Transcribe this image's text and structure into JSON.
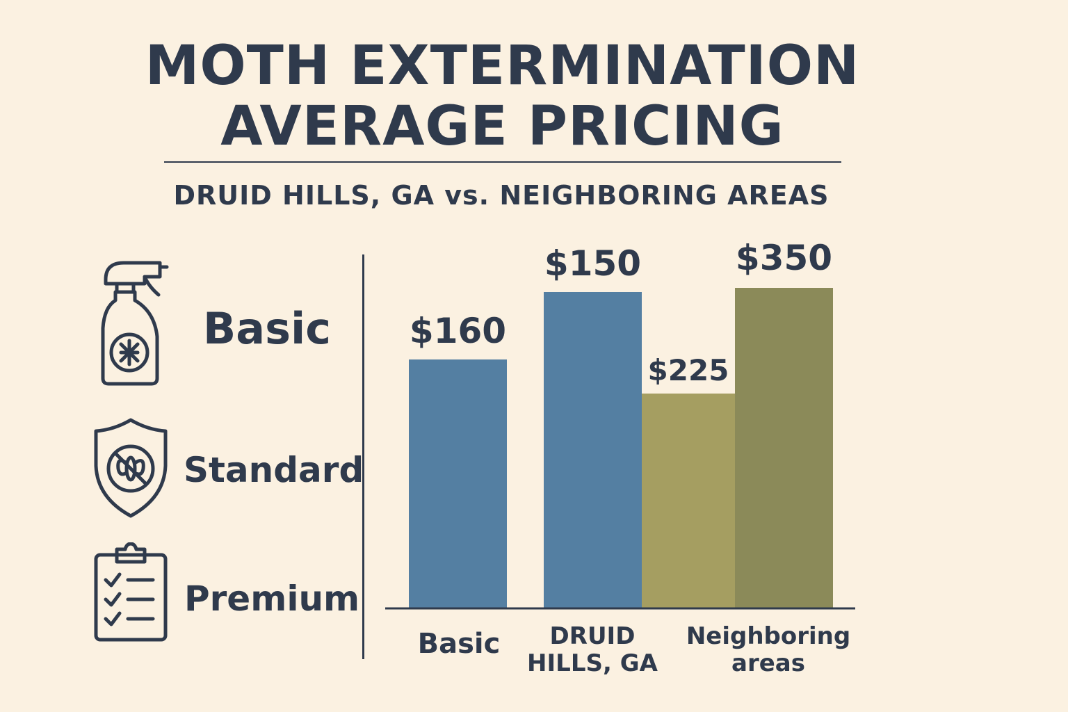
{
  "title_line1": "MOTH EXTERMINATION",
  "title_line2": "AVERAGE PRICING",
  "subtitle": "DRUID HILLS, GA vs. NEIGHBORING AREAS",
  "tiers": [
    {
      "label": "Basic",
      "icon": "spray-bottle-icon"
    },
    {
      "label": "Standard",
      "icon": "shield-no-moth-icon"
    },
    {
      "label": "Premium",
      "icon": "clipboard-checklist-icon"
    }
  ],
  "chart_data": {
    "type": "bar",
    "categories": [
      "Basic",
      "DRUID HILLS, GA",
      "Neighboring areas"
    ],
    "bars": [
      {
        "category_index": 0,
        "value": 160,
        "label": "$160",
        "color": "#547fa2"
      },
      {
        "category_index": 1,
        "value": 150,
        "label": "$150",
        "color": "#547fa2"
      },
      {
        "category_index": 2,
        "value": 225,
        "label": "$225",
        "color": "#a59e61"
      },
      {
        "category_index": 2,
        "value": 350,
        "label": "$350",
        "color": "#8b8a59"
      }
    ],
    "title": "",
    "xlabel": "",
    "ylabel": "",
    "grid": false,
    "legend": "none"
  }
}
